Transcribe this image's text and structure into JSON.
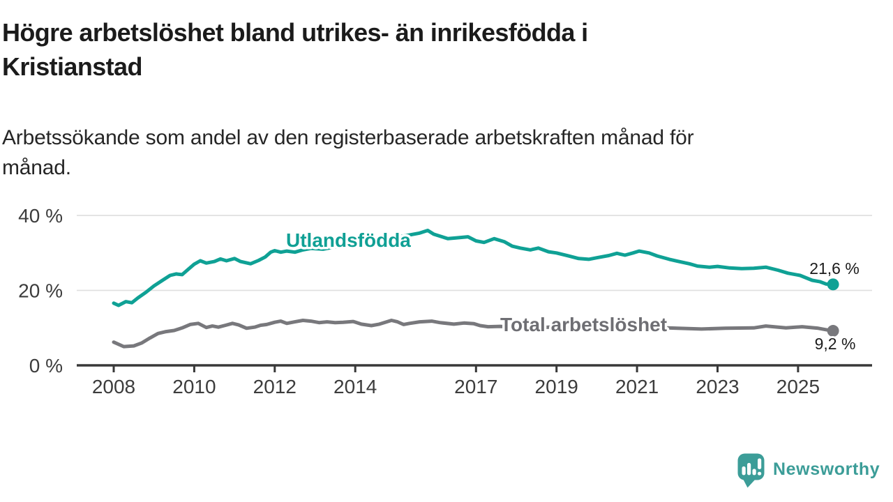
{
  "title": {
    "line1": "Högre arbetslöshet bland utrikes- än inrikesfödda i",
    "line2": "Kristianstad"
  },
  "subtitle": {
    "line1": "Arbetssökande som andel av den registerbaserade arbetskraften månad för",
    "line2": "månad."
  },
  "colors": {
    "teal_line": "#0fa195",
    "gray_line": "#78787c",
    "teal_label": "#10a095",
    "gray_label": "#6e6e73",
    "title_text": "#1b1b1b",
    "axis_line": "#383838",
    "tick_text": "#3c3c3c",
    "gridline": "#e0e0e0",
    "logo_teal": "#3c9d98",
    "background": "#ffffff"
  },
  "chart_data": {
    "type": "line",
    "x_unit": "year (monthly data)",
    "x_range": [
      2008,
      2025.87
    ],
    "ylim": [
      0,
      43
    ],
    "grid": "horizontal",
    "legend_position": "inline-labels",
    "y_ticks": [
      {
        "value": 0,
        "label": "0 %"
      },
      {
        "value": 20,
        "label": "20 %"
      },
      {
        "value": 40,
        "label": "40 %"
      }
    ],
    "x_ticks": [
      {
        "value": 2008,
        "label": "2008"
      },
      {
        "value": 2010,
        "label": "2010"
      },
      {
        "value": 2012,
        "label": "2012"
      },
      {
        "value": 2014,
        "label": "2014"
      },
      {
        "value": 2017,
        "label": "2017"
      },
      {
        "value": 2019,
        "label": "2019"
      },
      {
        "value": 2021,
        "label": "2021"
      },
      {
        "value": 2023,
        "label": "2023"
      },
      {
        "value": 2025,
        "label": "2025"
      }
    ],
    "series": [
      {
        "name": "Utlandsfödda",
        "color": "#0fa195",
        "end_value": 21.6,
        "end_label": "21,6 %",
        "points": [
          [
            2008.0,
            16.6
          ],
          [
            2008.12,
            16.0
          ],
          [
            2008.3,
            17.0
          ],
          [
            2008.45,
            16.7
          ],
          [
            2008.6,
            18.0
          ],
          [
            2008.8,
            19.5
          ],
          [
            2009.0,
            21.2
          ],
          [
            2009.2,
            22.6
          ],
          [
            2009.4,
            24.0
          ],
          [
            2009.55,
            24.4
          ],
          [
            2009.7,
            24.2
          ],
          [
            2009.85,
            25.6
          ],
          [
            2010.0,
            27.0
          ],
          [
            2010.15,
            27.9
          ],
          [
            2010.3,
            27.3
          ],
          [
            2010.5,
            27.7
          ],
          [
            2010.65,
            28.4
          ],
          [
            2010.8,
            27.9
          ],
          [
            2011.0,
            28.5
          ],
          [
            2011.15,
            27.7
          ],
          [
            2011.4,
            27.1
          ],
          [
            2011.6,
            28.0
          ],
          [
            2011.76,
            28.9
          ],
          [
            2011.9,
            30.2
          ],
          [
            2012.0,
            30.6
          ],
          [
            2012.15,
            30.2
          ],
          [
            2012.3,
            30.5
          ],
          [
            2012.5,
            30.2
          ],
          [
            2012.7,
            30.8
          ],
          [
            2012.9,
            31.2
          ],
          [
            2013.2,
            31.0
          ],
          [
            2013.5,
            31.6
          ],
          [
            2013.8,
            32.2
          ],
          [
            2014.0,
            32.6
          ],
          [
            2014.3,
            33.0
          ],
          [
            2014.6,
            33.4
          ],
          [
            2014.9,
            34.0
          ],
          [
            2015.1,
            34.3
          ],
          [
            2015.4,
            34.9
          ],
          [
            2015.6,
            35.3
          ],
          [
            2015.8,
            36.0
          ],
          [
            2015.95,
            35.0
          ],
          [
            2016.1,
            34.5
          ],
          [
            2016.3,
            33.8
          ],
          [
            2016.5,
            34.0
          ],
          [
            2016.8,
            34.3
          ],
          [
            2017.0,
            33.2
          ],
          [
            2017.2,
            32.8
          ],
          [
            2017.45,
            33.8
          ],
          [
            2017.7,
            33.0
          ],
          [
            2017.9,
            31.8
          ],
          [
            2018.1,
            31.3
          ],
          [
            2018.35,
            30.8
          ],
          [
            2018.55,
            31.3
          ],
          [
            2018.8,
            30.3
          ],
          [
            2019.0,
            30.0
          ],
          [
            2019.3,
            29.2
          ],
          [
            2019.55,
            28.5
          ],
          [
            2019.8,
            28.3
          ],
          [
            2020.0,
            28.7
          ],
          [
            2020.3,
            29.3
          ],
          [
            2020.5,
            29.9
          ],
          [
            2020.7,
            29.4
          ],
          [
            2020.9,
            30.0
          ],
          [
            2021.05,
            30.5
          ],
          [
            2021.3,
            30.0
          ],
          [
            2021.5,
            29.2
          ],
          [
            2021.8,
            28.3
          ],
          [
            2022.0,
            27.8
          ],
          [
            2022.3,
            27.1
          ],
          [
            2022.5,
            26.5
          ],
          [
            2022.8,
            26.2
          ],
          [
            2023.0,
            26.4
          ],
          [
            2023.3,
            26.0
          ],
          [
            2023.6,
            25.8
          ],
          [
            2023.9,
            25.9
          ],
          [
            2024.2,
            26.2
          ],
          [
            2024.5,
            25.4
          ],
          [
            2024.75,
            24.6
          ],
          [
            2025.05,
            24.0
          ],
          [
            2025.35,
            22.7
          ],
          [
            2025.55,
            22.3
          ],
          [
            2025.7,
            21.7
          ],
          [
            2025.87,
            21.6
          ]
        ]
      },
      {
        "name": "Total arbetslöshet",
        "color": "#78787c",
        "end_value": 9.2,
        "end_label": "9,2 %",
        "points": [
          [
            2008.0,
            6.2
          ],
          [
            2008.25,
            5.0
          ],
          [
            2008.5,
            5.2
          ],
          [
            2008.7,
            6.0
          ],
          [
            2008.9,
            7.3
          ],
          [
            2009.1,
            8.5
          ],
          [
            2009.3,
            9.0
          ],
          [
            2009.5,
            9.3
          ],
          [
            2009.7,
            10.0
          ],
          [
            2009.9,
            10.9
          ],
          [
            2010.1,
            11.2
          ],
          [
            2010.3,
            10.1
          ],
          [
            2010.45,
            10.5
          ],
          [
            2010.6,
            10.2
          ],
          [
            2010.78,
            10.7
          ],
          [
            2010.95,
            11.2
          ],
          [
            2011.1,
            10.8
          ],
          [
            2011.3,
            9.9
          ],
          [
            2011.5,
            10.2
          ],
          [
            2011.65,
            10.7
          ],
          [
            2011.8,
            10.9
          ],
          [
            2012.0,
            11.5
          ],
          [
            2012.15,
            11.8
          ],
          [
            2012.3,
            11.2
          ],
          [
            2012.5,
            11.6
          ],
          [
            2012.7,
            12.0
          ],
          [
            2012.9,
            11.8
          ],
          [
            2013.1,
            11.4
          ],
          [
            2013.3,
            11.6
          ],
          [
            2013.5,
            11.4
          ],
          [
            2013.7,
            11.5
          ],
          [
            2013.95,
            11.7
          ],
          [
            2014.15,
            11.0
          ],
          [
            2014.4,
            10.6
          ],
          [
            2014.6,
            11.0
          ],
          [
            2014.9,
            12.0
          ],
          [
            2015.05,
            11.6
          ],
          [
            2015.2,
            10.9
          ],
          [
            2015.35,
            11.2
          ],
          [
            2015.6,
            11.6
          ],
          [
            2015.9,
            11.8
          ],
          [
            2016.1,
            11.4
          ],
          [
            2016.45,
            11.0
          ],
          [
            2016.7,
            11.3
          ],
          [
            2016.95,
            11.1
          ],
          [
            2017.1,
            10.6
          ],
          [
            2017.3,
            10.3
          ],
          [
            2017.6,
            10.4
          ],
          [
            2018.0,
            10.1
          ],
          [
            2018.5,
            10.0
          ],
          [
            2019.0,
            10.3
          ],
          [
            2019.5,
            10.2
          ],
          [
            2019.8,
            10.0
          ],
          [
            2020.1,
            10.3
          ],
          [
            2020.4,
            10.8
          ],
          [
            2020.8,
            10.6
          ],
          [
            2021.1,
            10.4
          ],
          [
            2021.5,
            10.1
          ],
          [
            2022.0,
            9.9
          ],
          [
            2022.6,
            9.7
          ],
          [
            2023.2,
            9.9
          ],
          [
            2023.9,
            10.0
          ],
          [
            2024.2,
            10.5
          ],
          [
            2024.7,
            10.0
          ],
          [
            2025.1,
            10.3
          ],
          [
            2025.5,
            9.9
          ],
          [
            2025.7,
            9.5
          ],
          [
            2025.87,
            9.2
          ]
        ]
      }
    ]
  },
  "logo": {
    "text": "Newsworthy"
  }
}
